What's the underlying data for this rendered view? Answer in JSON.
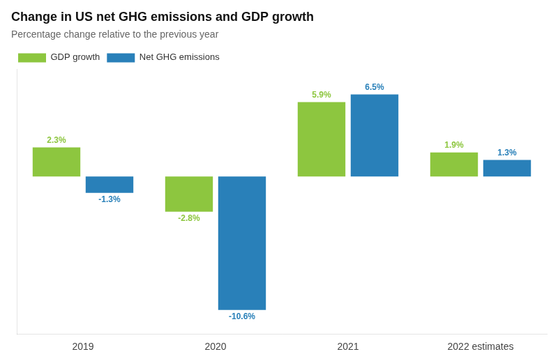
{
  "chart_data": {
    "type": "bar",
    "title": "Change in US net GHG emissions and GDP growth",
    "subtitle": "Percentage change relative to the previous year",
    "categories": [
      "2019",
      "2020",
      "2021",
      "2022 estimates"
    ],
    "series": [
      {
        "name": "GDP growth",
        "color": "#8DC63F",
        "values": [
          2.3,
          -2.8,
          5.9,
          1.9
        ],
        "value_labels": [
          "2.3%",
          "-2.8%",
          "5.9%",
          "1.9%"
        ]
      },
      {
        "name": "Net GHG emissions",
        "color": "#2980B9",
        "values": [
          -1.3,
          -10.6,
          6.5,
          1.3
        ],
        "value_labels": [
          "-1.3%",
          "-10.6%",
          "6.5%",
          "1.3%"
        ]
      }
    ],
    "ylim": [
      -12.5,
      8.5
    ],
    "grid": false,
    "legend": "upper left",
    "data_labels": true,
    "tick_labels": "x"
  }
}
